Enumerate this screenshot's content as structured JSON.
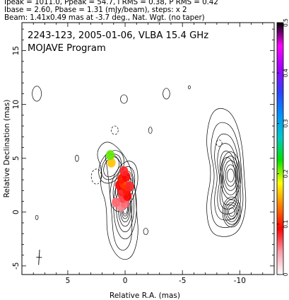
{
  "header": {
    "line1": "Ipeak = 1011.0, Ppeak = 54.7, I RMS = 0.38, P RMS = 0.42",
    "line2": "Ibase = 2.60, Pbase = 1.31 (mJy/beam), steps: x 2",
    "line3": "Beam: 1.41x0.49 mas at -3.7 deg., Nat. Wgt. (no taper)"
  },
  "chart_data": {
    "type": "contour",
    "title": "2243-123, 2005-01-06, VLBA 15.4 GHz",
    "subtitle": "MOJAVE Program",
    "xlabel": "Relative R.A. (mas)",
    "ylabel": "Relative Declination (mas)",
    "xlim": [
      9,
      -13
    ],
    "ylim": [
      -5.8,
      17.6
    ],
    "x_ticks": [
      5,
      0,
      -5,
      -10
    ],
    "x_tick_labels": [
      "5",
      "0",
      "-5",
      "-10"
    ],
    "y_ticks": [
      -5,
      0,
      5,
      10,
      15
    ],
    "y_tick_labels": [
      "-5",
      "0",
      "5",
      "10",
      "15"
    ],
    "colorbar": {
      "min": 0,
      "max": 0.5,
      "ticks": [
        0,
        0.1,
        0.2,
        0.3,
        0.4,
        0.5
      ],
      "tick_labels": [
        "0",
        "0.1",
        "0.2",
        "0.3",
        "0.4",
        "0.5"
      ],
      "colors": [
        "#ffffff",
        "#ff9aa8",
        "#ff0000",
        "#ff8000",
        "#ffff00",
        "#00e000",
        "#00c8c8",
        "#0090ff",
        "#3040ff",
        "#a000ff",
        "#ff00ff",
        "#000000"
      ]
    },
    "core": {
      "components": [
        {
          "x": 0.0,
          "y": 0.5,
          "a": 1.0,
          "b": 3.0,
          "rot": 0,
          "levels": 7
        },
        {
          "x": 0.1,
          "y": 2.4,
          "a": 1.1,
          "b": 2.4,
          "rot": 15,
          "levels": 5
        },
        {
          "x": 1.2,
          "y": 4.2,
          "a": 1.0,
          "b": 1.6,
          "rot": 25,
          "levels": 3
        }
      ]
    },
    "jet_outer_contours": [
      [
        [
          2.0,
          4.0
        ],
        [
          2.6,
          5.6
        ],
        [
          1.6,
          6.8
        ],
        [
          0.2,
          5.6
        ],
        [
          -0.8,
          3.4
        ],
        [
          -1.0,
          0.0
        ],
        [
          -1.2,
          -2.2
        ],
        [
          -0.6,
          -4.4
        ],
        [
          0.6,
          -4.4
        ],
        [
          1.6,
          -2.4
        ],
        [
          1.6,
          0.8
        ],
        [
          2.2,
          2.4
        ]
      ],
      [
        [
          1.6,
          4.4
        ],
        [
          1.8,
          5.6
        ],
        [
          0.6,
          5.2
        ],
        [
          -0.2,
          3.0
        ],
        [
          -0.6,
          0.0
        ],
        [
          -0.6,
          -2.8
        ],
        [
          0.2,
          -3.8
        ],
        [
          1.0,
          -2.8
        ],
        [
          1.2,
          0.4
        ],
        [
          1.4,
          2.6
        ]
      ]
    ],
    "polarization": {
      "points": [
        {
          "x": 0.4,
          "y": 0.5,
          "value": 0.05
        },
        {
          "x": 0.0,
          "y": 0.8,
          "value": 0.06
        },
        {
          "x": 0.2,
          "y": 1.3,
          "value": 0.07
        },
        {
          "x": -0.2,
          "y": 1.5,
          "value": 0.09
        },
        {
          "x": 0.3,
          "y": 1.9,
          "value": 0.08
        },
        {
          "x": -0.1,
          "y": 2.1,
          "value": 0.1
        },
        {
          "x": 0.5,
          "y": 2.5,
          "value": 0.09
        },
        {
          "x": 0.1,
          "y": 2.6,
          "value": 0.11
        },
        {
          "x": -0.4,
          "y": 2.4,
          "value": 0.08
        },
        {
          "x": 0.3,
          "y": 3.1,
          "value": 0.1
        },
        {
          "x": -0.1,
          "y": 3.3,
          "value": 0.09
        },
        {
          "x": 0.1,
          "y": 3.8,
          "value": 0.08
        },
        {
          "x": 0.8,
          "y": 0.9,
          "value": 0.06
        },
        {
          "x": 1.2,
          "y": 4.6,
          "value": 0.16
        },
        {
          "x": 1.3,
          "y": 5.3,
          "value": 0.21
        }
      ]
    },
    "east_lobe": {
      "x": -9.2,
      "y": 2.4,
      "outer": [
        [
          -7.4,
          9.0
        ],
        [
          -8.2,
          9.8
        ],
        [
          -9.4,
          9.2
        ],
        [
          -10.2,
          6.6
        ],
        [
          -10.4,
          3.2
        ],
        [
          -10.6,
          0.4
        ],
        [
          -10.0,
          -1.8
        ],
        [
          -8.8,
          -2.4
        ],
        [
          -7.4,
          -2.0
        ],
        [
          -7.0,
          0.6
        ],
        [
          -7.6,
          3.6
        ],
        [
          -7.0,
          6.4
        ]
      ],
      "levels": 6
    },
    "negative_contours": [
      {
        "x": 2.5,
        "y": 3.3,
        "a": 0.45,
        "b": 0.7
      },
      {
        "x": 0.9,
        "y": 7.6,
        "a": 0.3,
        "b": 0.4
      },
      {
        "x": -8.2,
        "y": 6.4,
        "a": 0.25,
        "b": 0.3
      }
    ],
    "noise_islands": [
      {
        "x": 7.7,
        "y": 11.0,
        "a": 0.4,
        "b": 0.7
      },
      {
        "x": 0.1,
        "y": 10.5,
        "a": 0.3,
        "b": 0.4
      },
      {
        "x": -3.6,
        "y": 11.0,
        "a": 0.3,
        "b": 0.5
      },
      {
        "x": -2.2,
        "y": 7.6,
        "a": 0.15,
        "b": 0.3
      },
      {
        "x": -5.6,
        "y": 11.6,
        "a": 0.1,
        "b": 0.15
      },
      {
        "x": 7.7,
        "y": -0.5,
        "a": 0.12,
        "b": 0.2
      },
      {
        "x": 4.2,
        "y": 5.0,
        "a": 0.15,
        "b": 0.3
      },
      {
        "x": -1.8,
        "y": -1.8,
        "a": 0.2,
        "b": 0.3
      }
    ],
    "beam": {
      "x": 7.5,
      "y": -4.2,
      "major": 1.41,
      "minor": 0.49,
      "pa": -3.7
    }
  }
}
